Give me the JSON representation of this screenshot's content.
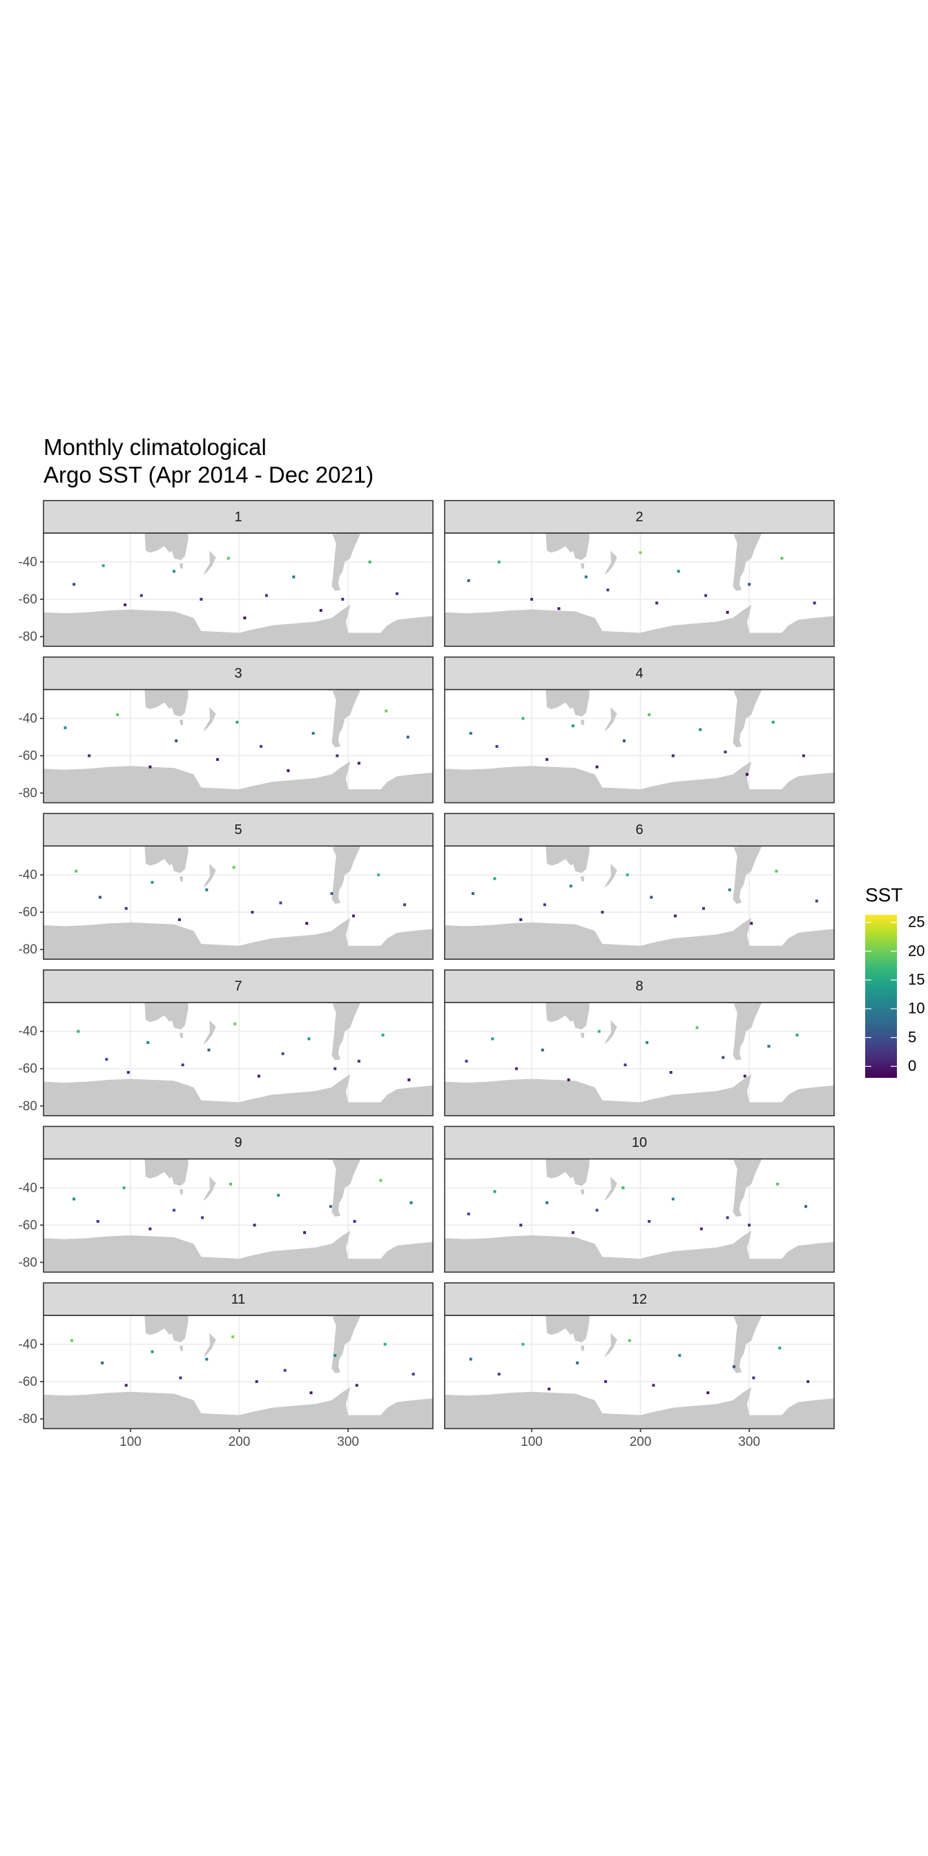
{
  "chart_data": {
    "type": "scatter",
    "title": "Monthly climatological\nArgo SST (Apr 2014 - Dec 2021)",
    "xlim": [
      20,
      378
    ],
    "ylim": [
      -85.2,
      -24.5
    ],
    "xticks": [
      100,
      200,
      300
    ],
    "yticks": [
      -40,
      -60,
      -80
    ],
    "grid": true,
    "colormap": "viridis",
    "colorbar": {
      "title": "SST",
      "lim": [
        -2,
        26.3
      ],
      "ticks": [
        0,
        5,
        10,
        15,
        20,
        25
      ]
    },
    "facets": [
      {
        "title": "1",
        "x": [
          48,
          75,
          95,
          110,
          140,
          165,
          190,
          205,
          225,
          250,
          275,
          295,
          320,
          345
        ],
        "y": [
          -52,
          -42,
          -63,
          -58,
          -45,
          -60,
          -38,
          -70,
          -58,
          -48,
          -66,
          -60,
          -40,
          -57
        ],
        "values": [
          5,
          15,
          0.5,
          2.5,
          12,
          1.5,
          19,
          -1.5,
          2.5,
          9,
          -0.5,
          1.5,
          17,
          3
        ]
      },
      {
        "title": "2",
        "x": [
          42,
          70,
          100,
          125,
          150,
          170,
          200,
          215,
          235,
          260,
          280,
          300,
          330,
          360
        ],
        "y": [
          -50,
          -40,
          -60,
          -65,
          -48,
          -55,
          -35,
          -62,
          -45,
          -58,
          -67,
          -52,
          -38,
          -62
        ],
        "values": [
          7,
          17,
          1.5,
          0,
          9,
          4,
          21,
          1,
          12,
          2.5,
          -1,
          5,
          19,
          1
        ]
      },
      {
        "title": "3",
        "x": [
          40,
          62,
          88,
          118,
          142,
          180,
          198,
          220,
          245,
          268,
          290,
          310,
          335,
          355
        ],
        "y": [
          -45,
          -60,
          -38,
          -66,
          -52,
          -62,
          -42,
          -55,
          -68,
          -48,
          -60,
          -64,
          -36,
          -50
        ],
        "values": [
          12,
          1.5,
          19,
          -0.5,
          5,
          1,
          15,
          4,
          -1,
          9,
          1.5,
          0.5,
          20,
          7
        ]
      },
      {
        "title": "4",
        "x": [
          44,
          68,
          92,
          114,
          138,
          160,
          185,
          208,
          230,
          255,
          278,
          298,
          322,
          350
        ],
        "y": [
          -48,
          -55,
          -40,
          -62,
          -44,
          -66,
          -52,
          -38,
          -60,
          -46,
          -58,
          -70,
          -42,
          -60
        ],
        "values": [
          9,
          4,
          17,
          1,
          13,
          -0.5,
          5,
          19,
          1.5,
          11,
          2.5,
          -1.5,
          15,
          1.5
        ]
      },
      {
        "title": "5",
        "x": [
          50,
          72,
          96,
          120,
          145,
          170,
          195,
          212,
          238,
          262,
          285,
          305,
          328,
          352
        ],
        "y": [
          -38,
          -52,
          -58,
          -44,
          -64,
          -48,
          -36,
          -60,
          -55,
          -66,
          -50,
          -62,
          -40,
          -56
        ],
        "values": [
          19,
          5,
          2.5,
          13,
          0.5,
          9,
          20,
          1.5,
          4,
          -0.5,
          7,
          1,
          17,
          3.5
        ]
      },
      {
        "title": "6",
        "x": [
          46,
          66,
          90,
          112,
          136,
          165,
          188,
          210,
          232,
          258,
          282,
          302,
          325,
          362
        ],
        "y": [
          -50,
          -42,
          -64,
          -56,
          -46,
          -60,
          -40,
          -52,
          -62,
          -58,
          -48,
          -66,
          -38,
          -54
        ],
        "values": [
          7,
          15,
          0.5,
          3.5,
          11,
          1.5,
          17,
          5,
          1,
          2.5,
          9,
          -0.5,
          19,
          4.5
        ]
      },
      {
        "title": "7",
        "x": [
          52,
          78,
          98,
          116,
          148,
          172,
          196,
          218,
          240,
          264,
          288,
          310,
          332,
          356
        ],
        "y": [
          -40,
          -55,
          -62,
          -46,
          -58,
          -50,
          -36,
          -64,
          -52,
          -44,
          -60,
          -56,
          -42,
          -66
        ],
        "values": [
          17,
          4,
          1,
          11,
          2.5,
          7,
          20,
          0.5,
          5,
          13,
          1.5,
          3,
          15,
          -0.5
        ]
      },
      {
        "title": "8",
        "x": [
          40,
          64,
          86,
          110,
          134,
          162,
          186,
          206,
          228,
          252,
          276,
          296,
          318,
          344
        ],
        "y": [
          -56,
          -44,
          -60,
          -50,
          -66,
          -40,
          -58,
          -46,
          -62,
          -38,
          -54,
          -64,
          -48,
          -42
        ],
        "values": [
          3.5,
          13,
          1.5,
          7,
          -0.5,
          17,
          2.5,
          11,
          1,
          19,
          4,
          0.5,
          9,
          15
        ]
      },
      {
        "title": "9",
        "x": [
          48,
          70,
          94,
          118,
          140,
          166,
          192,
          214,
          236,
          260,
          284,
          306,
          330,
          358
        ],
        "y": [
          -46,
          -58,
          -40,
          -62,
          -52,
          -56,
          -38,
          -60,
          -44,
          -64,
          -50,
          -58,
          -36,
          -48
        ],
        "values": [
          11,
          2.5,
          17,
          1,
          5,
          3.5,
          19,
          1.5,
          13,
          0.5,
          7,
          2.5,
          20,
          9
        ]
      },
      {
        "title": "10",
        "x": [
          42,
          66,
          90,
          114,
          138,
          160,
          184,
          208,
          230,
          256,
          280,
          300,
          326,
          352
        ],
        "y": [
          -54,
          -42,
          -60,
          -48,
          -64,
          -52,
          -40,
          -58,
          -46,
          -62,
          -56,
          -60,
          -38,
          -50
        ],
        "values": [
          4,
          15,
          1.5,
          9,
          0.5,
          5,
          17,
          2.5,
          11,
          1,
          3.5,
          1.5,
          19,
          7
        ]
      },
      {
        "title": "11",
        "x": [
          46,
          74,
          96,
          120,
          146,
          170,
          194,
          216,
          242,
          266,
          288,
          308,
          334,
          360
        ],
        "y": [
          -38,
          -50,
          -62,
          -44,
          -58,
          -48,
          -36,
          -60,
          -54,
          -66,
          -46,
          -62,
          -40,
          -56
        ],
        "values": [
          20,
          7,
          1,
          13,
          2.5,
          9,
          21,
          1.5,
          4,
          -0.5,
          11,
          1,
          17,
          3.5
        ]
      },
      {
        "title": "12",
        "x": [
          44,
          70,
          92,
          116,
          142,
          168,
          190,
          212,
          236,
          262,
          286,
          304,
          328,
          354
        ],
        "y": [
          -48,
          -56,
          -40,
          -64,
          -50,
          -60,
          -38,
          -62,
          -46,
          -66,
          -52,
          -58,
          -42,
          -60
        ],
        "values": [
          9,
          3.5,
          17,
          0.5,
          7,
          1.5,
          19,
          1,
          11,
          -0.5,
          5,
          2.5,
          15,
          1.5
        ]
      }
    ]
  }
}
